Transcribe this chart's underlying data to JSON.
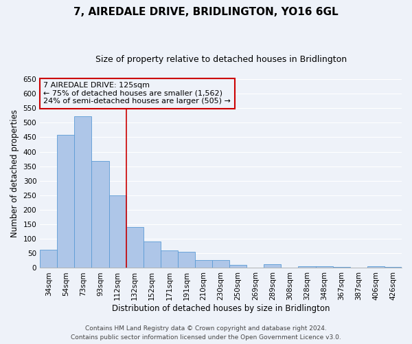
{
  "title": "7, AIREDALE DRIVE, BRIDLINGTON, YO16 6GL",
  "subtitle": "Size of property relative to detached houses in Bridlington",
  "xlabel": "Distribution of detached houses by size in Bridlington",
  "ylabel": "Number of detached properties",
  "bar_labels": [
    "34sqm",
    "54sqm",
    "73sqm",
    "93sqm",
    "112sqm",
    "132sqm",
    "152sqm",
    "171sqm",
    "191sqm",
    "210sqm",
    "230sqm",
    "250sqm",
    "269sqm",
    "289sqm",
    "308sqm",
    "328sqm",
    "348sqm",
    "367sqm",
    "387sqm",
    "406sqm",
    "426sqm"
  ],
  "bar_values": [
    62,
    457,
    522,
    368,
    250,
    140,
    92,
    61,
    56,
    27,
    27,
    10,
    0,
    13,
    0,
    7,
    5,
    3,
    0,
    6,
    4
  ],
  "bar_color": "#aec6e8",
  "bar_edgecolor": "#5b9bd5",
  "ylim": [
    0,
    650
  ],
  "yticks": [
    0,
    50,
    100,
    150,
    200,
    250,
    300,
    350,
    400,
    450,
    500,
    550,
    600,
    650
  ],
  "vline_color": "#cc0000",
  "annotation_line1": "7 AIREDALE DRIVE: 125sqm",
  "annotation_line2": "← 75% of detached houses are smaller (1,562)",
  "annotation_line3": "24% of semi-detached houses are larger (505) →",
  "annotation_box_color": "#cc0000",
  "footer1": "Contains HM Land Registry data © Crown copyright and database right 2024.",
  "footer2": "Contains public sector information licensed under the Open Government Licence v3.0.",
  "background_color": "#eef2f9",
  "grid_color": "#ffffff",
  "title_fontsize": 11,
  "subtitle_fontsize": 9,
  "axis_label_fontsize": 8.5,
  "tick_fontsize": 7.5,
  "annotation_fontsize": 8,
  "footer_fontsize": 6.5
}
